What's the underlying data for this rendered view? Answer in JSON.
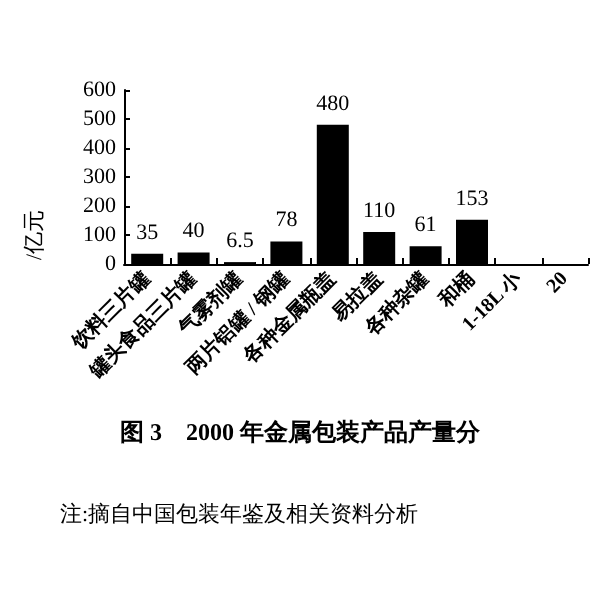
{
  "chart_data": {
    "type": "bar",
    "title": "图 3　2000 年金属包装产品产量分",
    "ylabel": "/亿元",
    "annotations": [
      "注:摘自中国包装年鉴及相关资料分析"
    ],
    "categories": [
      "饮料三片罐",
      "罐头食品三片罐",
      "气雾剂罐",
      "两片铝罐 / 钢罐",
      "各种金属瓶盖",
      "易拉盖",
      "各种杂罐",
      "和桶",
      "1-18L 小",
      "20"
    ],
    "values": [
      35,
      40,
      6.5,
      78,
      480,
      110,
      61,
      153,
      null,
      null
    ],
    "value_labels": [
      "35",
      "40",
      "6.5",
      "78",
      "480",
      "110",
      "61",
      "153",
      null,
      null
    ],
    "color": "#000000",
    "ylim": [
      0,
      600
    ],
    "yticks": [
      0,
      100,
      200,
      300,
      400,
      500,
      600
    ],
    "grid": false
  }
}
